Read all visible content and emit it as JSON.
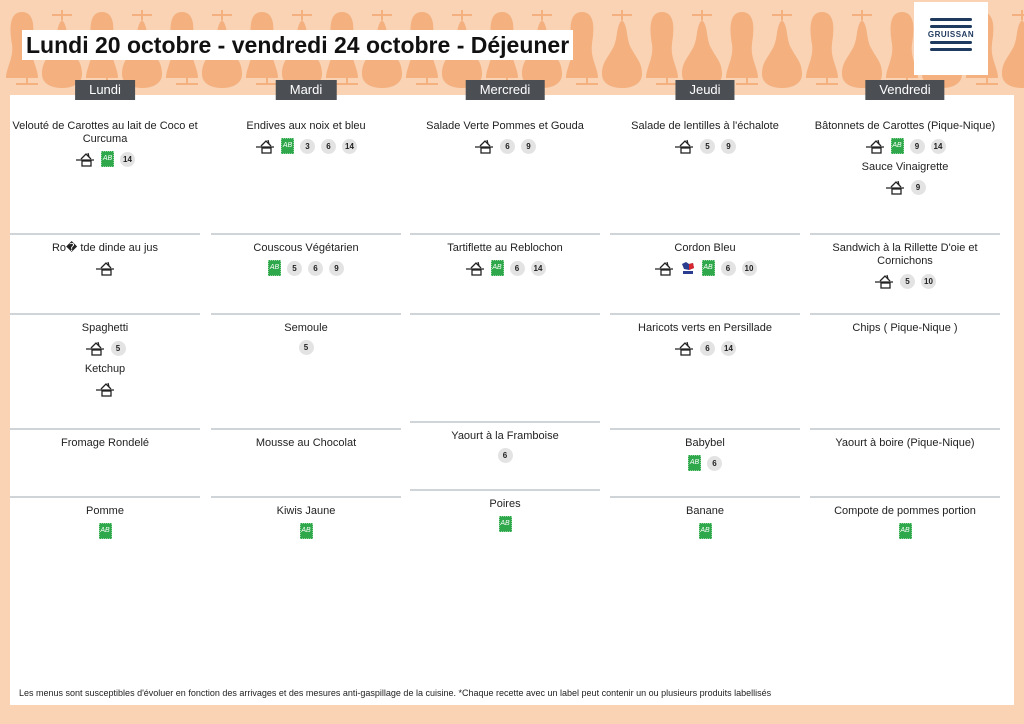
{
  "header": {
    "title": "Lundi 20 octobre - vendredi 24 octobre  - Déjeuner",
    "logo_text": "GRUISSAN"
  },
  "days": [
    {
      "label": "Lundi",
      "rows": [
        [
          {
            "name": "Velouté de Carottes au lait de Coco et Curcuma",
            "tags": [
              "home",
              "ab",
              "14"
            ]
          }
        ],
        [
          {
            "name": "Ro� tde dinde au jus",
            "tags": [
              "home"
            ]
          }
        ],
        [
          {
            "name": "Spaghetti",
            "tags": [
              "home",
              "5"
            ]
          },
          {
            "name": "Ketchup",
            "tags": [
              "home"
            ]
          }
        ],
        [
          {
            "name": "Fromage Rondelé",
            "tags": []
          }
        ],
        [
          {
            "name": "Pomme",
            "tags": [
              "ab"
            ]
          }
        ]
      ]
    },
    {
      "label": "Mardi",
      "rows": [
        [
          {
            "name": "Endives aux noix et bleu",
            "tags": [
              "home",
              "ab",
              "3",
              "6",
              "14"
            ]
          }
        ],
        [
          {
            "name": "Couscous Végétarien",
            "tags": [
              "ab",
              "5",
              "6",
              "9"
            ]
          }
        ],
        [
          {
            "name": "Semoule",
            "tags": [
              "5"
            ]
          }
        ],
        [
          {
            "name": "Mousse au Chocolat",
            "tags": []
          }
        ],
        [
          {
            "name": "Kiwis Jaune",
            "tags": [
              "ab"
            ]
          }
        ]
      ]
    },
    {
      "label": "Mercredi",
      "rows": [
        [
          {
            "name": "Salade Verte Pommes et Gouda",
            "tags": [
              "home",
              "6",
              "9"
            ]
          }
        ],
        [
          {
            "name": "Tartiflette au Reblochon",
            "tags": [
              "home",
              "ab",
              "6",
              "14"
            ]
          }
        ],
        [],
        [
          {
            "name": "Yaourt à la Framboise",
            "tags": [
              "6"
            ]
          }
        ],
        [
          {
            "name": "Poires",
            "tags": [
              "ab"
            ]
          }
        ]
      ]
    },
    {
      "label": "Jeudi",
      "rows": [
        [
          {
            "name": "Salade de lentilles à l'échalote",
            "tags": [
              "home",
              "5",
              "9"
            ]
          }
        ],
        [
          {
            "name": "Cordon Bleu",
            "tags": [
              "home",
              "vpf",
              "ab",
              "6",
              "10"
            ]
          }
        ],
        [
          {
            "name": "Haricots verts en Persillade",
            "tags": [
              "home",
              "6",
              "14"
            ]
          }
        ],
        [
          {
            "name": "Babybel",
            "tags": [
              "ab",
              "6"
            ]
          }
        ],
        [
          {
            "name": "Banane",
            "tags": [
              "ab"
            ]
          }
        ]
      ]
    },
    {
      "label": "Vendredi",
      "rows": [
        [
          {
            "name": "Bâtonnets de Carottes (Pique-Nique)",
            "tags": [
              "home",
              "ab",
              "9",
              "14"
            ]
          },
          {
            "name": "Sauce Vinaigrette",
            "tags": [
              "home",
              "9"
            ]
          }
        ],
        [
          {
            "name": "Sandwich à la Rillette D'oie et Cornichons",
            "tags": [
              "home",
              "5",
              "10"
            ]
          }
        ],
        [
          {
            "name": "Chips ( Pique-Nique )",
            "tags": []
          }
        ],
        [
          {
            "name": "Yaourt à boire (Pique-Nique)",
            "tags": []
          }
        ],
        [
          {
            "name": "Compote de pommes portion",
            "tags": [
              "ab"
            ]
          }
        ]
      ]
    }
  ],
  "ab_label": "AB",
  "footer": "Les menus sont susceptibles d'évoluer en fonction des arrivages et des mesures anti-gaspillage de la cuisine. *Chaque recette avec un label peut contenir un ou plusieurs produits labellisés",
  "colors": {
    "background": "#f9d3b4",
    "pear": "#f4b07e",
    "day_header": "#4b4f54",
    "bio": "#2ea84a"
  }
}
